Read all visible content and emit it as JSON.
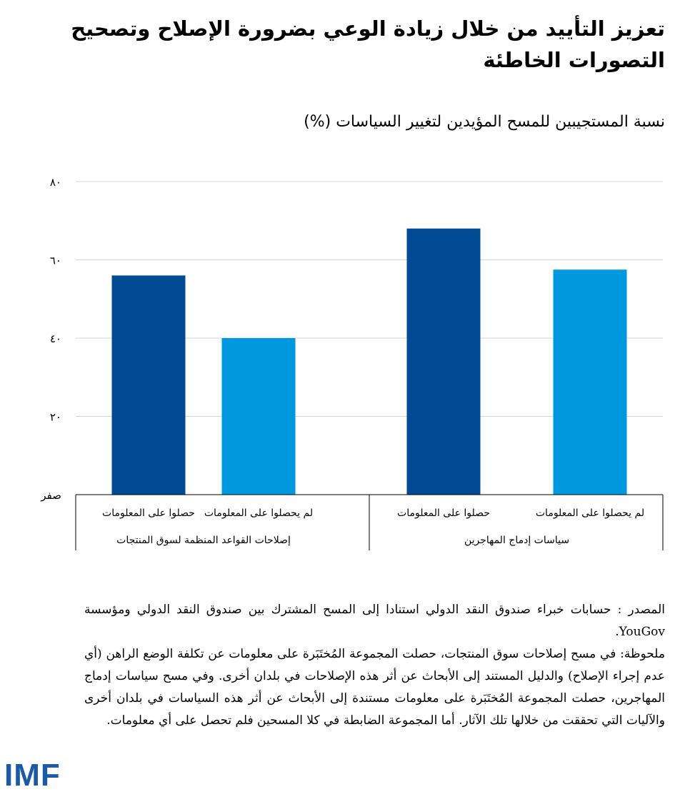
{
  "title": "تعزيز التأييد من خلال زيادة الوعي بضرورة الإصلاح وتصحيح التصورات الخاطئة",
  "chart_data": {
    "type": "bar",
    "title": "نسبة المستجيبين للمسح المؤيدين لتغيير السياسات (%)",
    "ylim": [
      0,
      80
    ],
    "yticks": [
      0,
      20,
      40,
      60,
      80
    ],
    "ytick_labels": [
      "صفر",
      "٢٠",
      "٤٠",
      "٦٠",
      "٨٠"
    ],
    "grid": true,
    "groups": [
      {
        "label": "إصلاحات القواعد المنظمة لسوق المنتجات",
        "bars": [
          {
            "label": "لم يحصلوا على المعلومات",
            "value": 40,
            "color": "#0099dd"
          },
          {
            "label": "حصلوا على المعلومات",
            "value": 56,
            "color": "#004b93"
          }
        ]
      },
      {
        "label": "سياسات إدماج المهاجرين",
        "bars": [
          {
            "label": "لم يحصلوا على المعلومات",
            "value": 57.5,
            "color": "#0099dd"
          },
          {
            "label": "حصلوا على المعلومات",
            "value": 68,
            "color": "#004b93"
          }
        ]
      }
    ]
  },
  "source": "المصدر : حسابات خبراء صندوق النقد الدولي استنادا إلى المسح المشترك بين صندوق النقد الدولي ومؤسسة YouGov.",
  "note": "ملحوظة: في مسح إصلاحات سوق المنتجات، حصلت المجموعة المُختَبَرة على معلومات عن تكلفة الوضع الراهن (أي عدم إجراء الإصلاح) والدليل المستند إلى الأبحاث عن أثر هذه الإصلاحات في بلدان أخرى. وفي مسح سياسات إدماج المهاجرين، حصلت المجموعة المُختَبَرة على معلومات مستندة إلى الأبحاث عن أثر هذه السياسات في بلدان أخرى والآليات التي تحققت من خلالها تلك الآثار. أما المجموعة الضابطة في كلا المسحين فلم تحصل على أي معلومات.",
  "logo_text": "IMF"
}
